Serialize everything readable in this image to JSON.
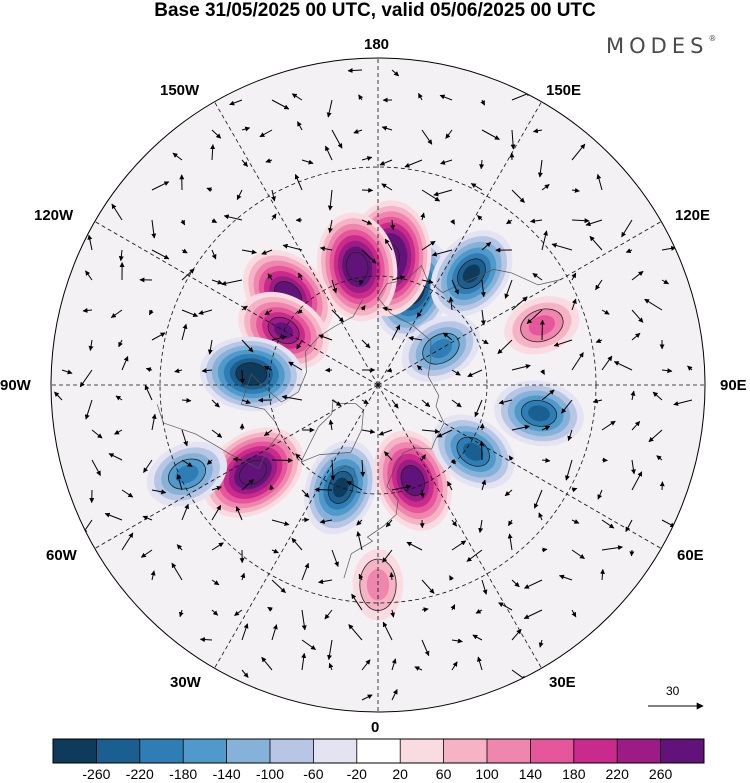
{
  "title": "Base 31/05/2025 00 UTC, valid 05/06/2025 00 UTC",
  "brand": {
    "name": "MODES",
    "mark": "®"
  },
  "longitude_labels": [
    "180",
    "150E",
    "120E",
    "90E",
    "60E",
    "30E",
    "0",
    "30W",
    "60W",
    "90W",
    "120W",
    "150W"
  ],
  "vector_scale": {
    "value": "30",
    "icon": "arrow-right-icon"
  },
  "colorbar": {
    "ticks": [
      "-260",
      "-220",
      "-180",
      "-140",
      "-100",
      "-60",
      "-20",
      "20",
      "60",
      "100",
      "140",
      "180",
      "220",
      "260"
    ],
    "colors": [
      "#0e3a5c",
      "#1a5f8f",
      "#2f7db5",
      "#4f9acb",
      "#86b2d9",
      "#b6c6e4",
      "#e4e3f1",
      "#ffffff",
      "#fadbe2",
      "#f5b3c5",
      "#ef86ad",
      "#e5569a",
      "#c92a8b",
      "#9c1b85",
      "#621379"
    ]
  },
  "map": {
    "projection": "north-polar-stereographic",
    "grid": true,
    "anomaly_centers": [
      {
        "sign": "neg",
        "level": 8,
        "lon": 160,
        "lat": 62
      },
      {
        "sign": "pos",
        "level": 10,
        "lon": 175,
        "lat": 55
      },
      {
        "sign": "pos",
        "level": 9,
        "lon": -170,
        "lat": 57
      },
      {
        "sign": "neg",
        "level": 7,
        "lon": 140,
        "lat": 50
      },
      {
        "sign": "pos",
        "level": 8,
        "lon": -135,
        "lat": 55
      },
      {
        "sign": "pos",
        "level": 7,
        "lon": -120,
        "lat": 60
      },
      {
        "sign": "neg",
        "level": 8,
        "lon": -95,
        "lat": 55
      },
      {
        "sign": "pos",
        "level": 9,
        "lon": -55,
        "lat": 48
      },
      {
        "sign": "neg",
        "level": 7,
        "lon": -20,
        "lat": 60
      },
      {
        "sign": "pos",
        "level": 8,
        "lon": 20,
        "lat": 62
      },
      {
        "sign": "neg",
        "level": 6,
        "lon": 55,
        "lat": 58
      },
      {
        "sign": "neg",
        "level": 6,
        "lon": 80,
        "lat": 45
      },
      {
        "sign": "pos",
        "level": 4,
        "lon": 110,
        "lat": 42
      },
      {
        "sign": "neg",
        "level": 5,
        "lon": 120,
        "lat": 70
      },
      {
        "sign": "neg",
        "level": 5,
        "lon": -65,
        "lat": 32
      },
      {
        "sign": "pos",
        "level": 3,
        "lon": 0,
        "lat": 35
      }
    ]
  }
}
